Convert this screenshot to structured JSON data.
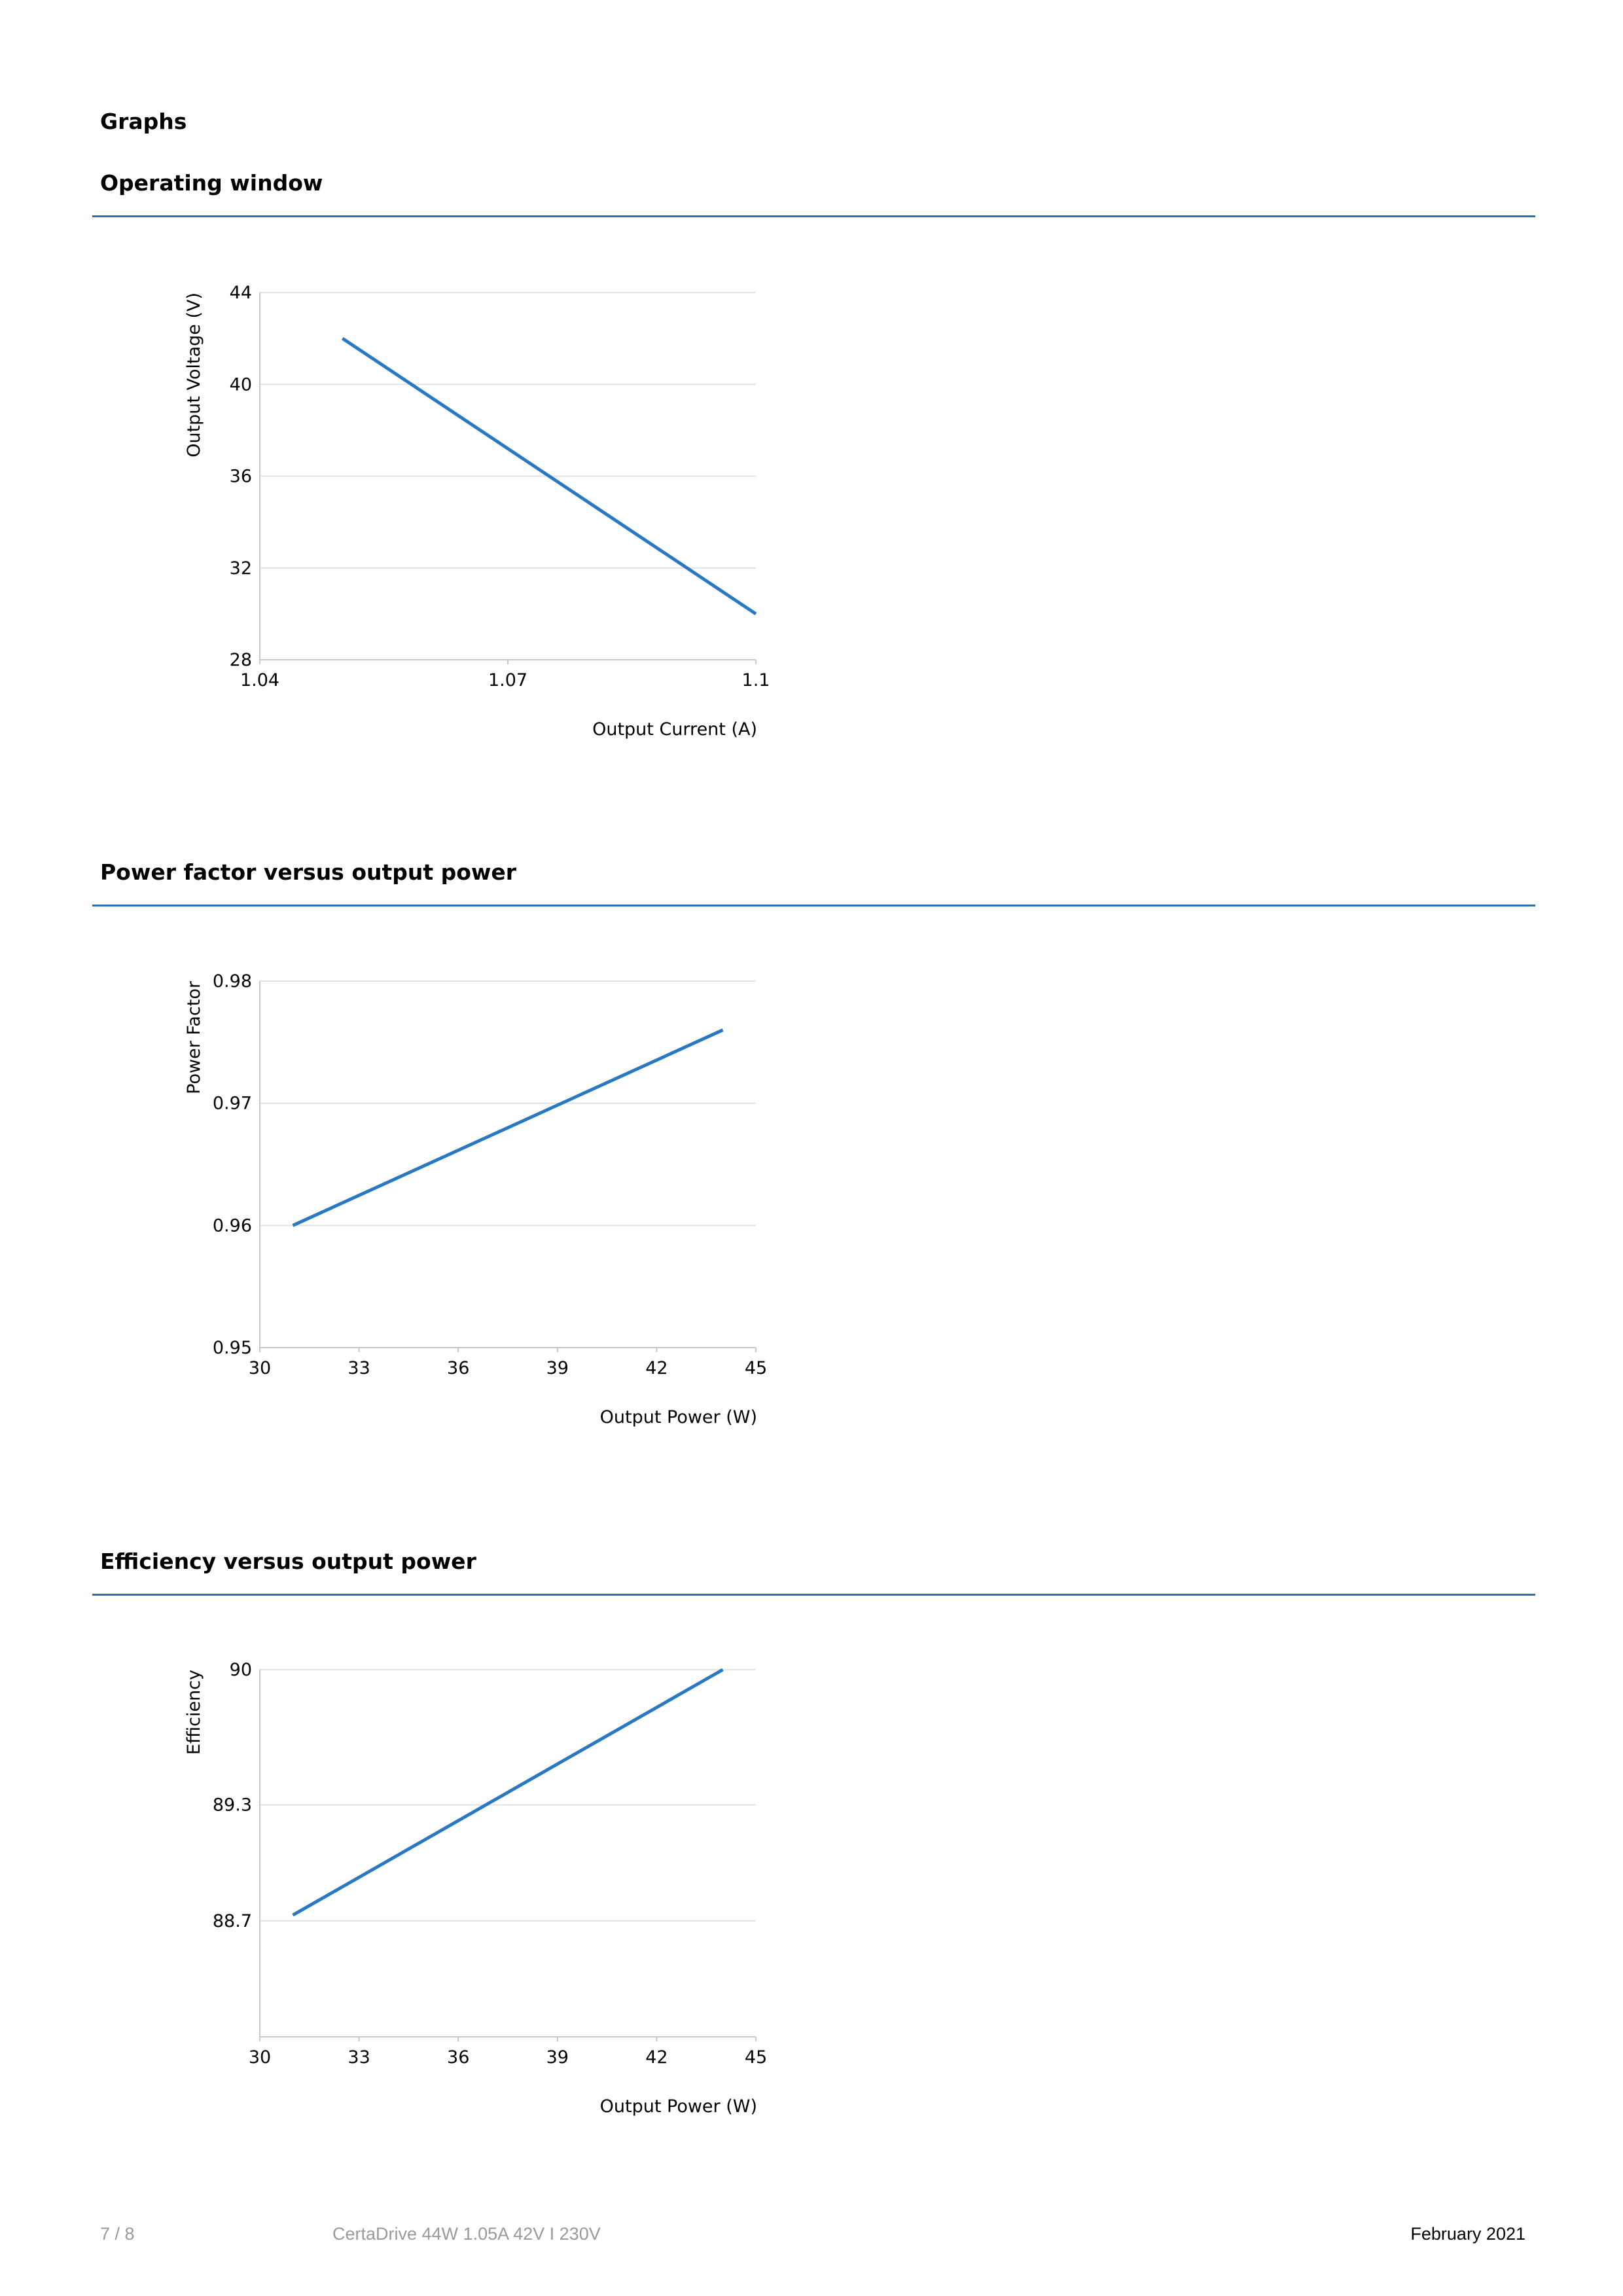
{
  "page": {
    "heading": "Graphs"
  },
  "sections": [
    {
      "title": "Operating window"
    },
    {
      "title": "Power factor versus output power"
    },
    {
      "title": "Efficiency versus output power"
    }
  ],
  "chart_data": [
    {
      "type": "line",
      "xlabel": "Output Current (A)",
      "ylabel": "Output Voltage (V)",
      "xlim": [
        1.04,
        1.1
      ],
      "ylim": [
        28,
        44
      ],
      "x_ticks": [
        "1.04",
        "1.07",
        "1.1"
      ],
      "y_ticks": [
        "28",
        "32",
        "36",
        "40",
        "44"
      ],
      "grid": true,
      "line_color": "#2878c4",
      "series": [
        {
          "x": [
            1.05,
            1.1
          ],
          "y": [
            42,
            30
          ]
        }
      ]
    },
    {
      "type": "line",
      "xlabel": "Output Power (W)",
      "ylabel": "Power Factor",
      "xlim": [
        30,
        45
      ],
      "ylim": [
        0.95,
        0.98
      ],
      "x_ticks": [
        "30",
        "33",
        "36",
        "39",
        "42",
        "45"
      ],
      "y_ticks": [
        "0.95",
        "0.96",
        "0.97",
        "0.98"
      ],
      "grid": true,
      "line_color": "#2878c4",
      "series": [
        {
          "x": [
            31,
            44
          ],
          "y": [
            0.96,
            0.976
          ]
        }
      ]
    },
    {
      "type": "line",
      "xlabel": "Output Power (W)",
      "ylabel": "Efficiency",
      "xlim": [
        30,
        45
      ],
      "ylim": [
        88.1,
        90
      ],
      "x_ticks": [
        "30",
        "33",
        "36",
        "39",
        "42",
        "45"
      ],
      "y_ticks": [
        "88.7",
        "89.3",
        "90"
      ],
      "grid": true,
      "line_color": "#2878c4",
      "series": [
        {
          "x": [
            31,
            44
          ],
          "y": [
            88.73,
            90
          ]
        }
      ]
    }
  ],
  "footer": {
    "page_number": "7 / 8",
    "product": "CertaDrive 44W 1.05A 42V I 230V",
    "date": "February 2021"
  },
  "colors": {
    "rule": "#2a6fb3",
    "gridline": "#e2e2e2",
    "axis": "#c8c8c8"
  }
}
